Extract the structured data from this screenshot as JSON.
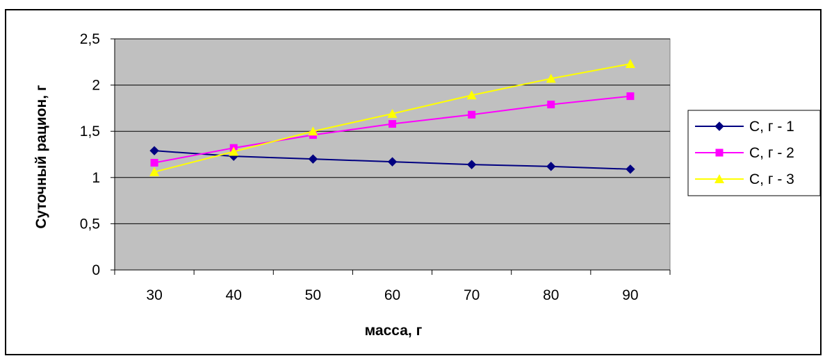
{
  "chart_data": {
    "type": "line",
    "title": "",
    "xlabel": "масса, г",
    "ylabel": "Суточный рацион, г",
    "categories": [
      "30",
      "40",
      "50",
      "60",
      "70",
      "80",
      "90"
    ],
    "ylim": [
      0,
      2.5
    ],
    "yticks": [
      0,
      0.5,
      1,
      1.5,
      2,
      2.5
    ],
    "ytick_labels": [
      "0",
      "0,5",
      "1",
      "1,5",
      "2",
      "2,5"
    ],
    "grid": true,
    "legend_position": "right",
    "plot_background": "#c0c0c0",
    "series": [
      {
        "name": "С, г - 1",
        "color": "#000080",
        "marker": "diamond",
        "values": [
          1.29,
          1.23,
          1.2,
          1.17,
          1.14,
          1.12,
          1.09
        ]
      },
      {
        "name": "С, г - 2",
        "color": "#ff00ff",
        "marker": "square",
        "values": [
          1.16,
          1.32,
          1.46,
          1.58,
          1.68,
          1.79,
          1.88
        ]
      },
      {
        "name": "С, г - 3",
        "color": "#ffff00",
        "marker": "triangle",
        "values": [
          1.06,
          1.28,
          1.5,
          1.69,
          1.89,
          2.07,
          2.23
        ]
      }
    ]
  }
}
